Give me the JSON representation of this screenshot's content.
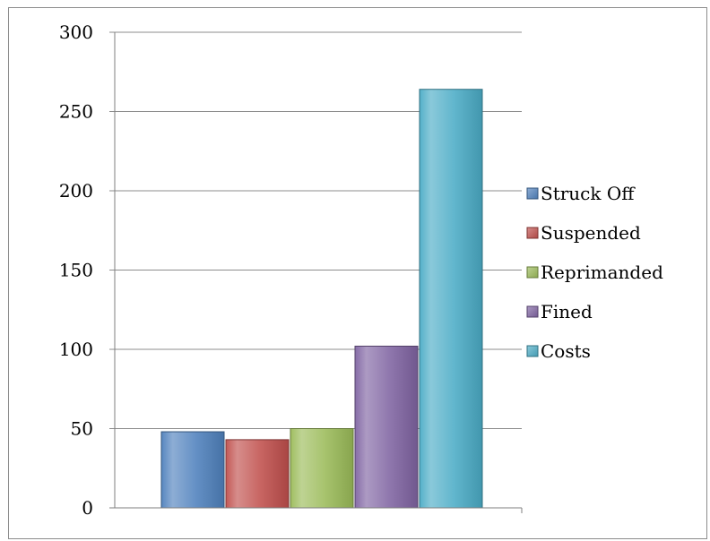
{
  "chart_data": {
    "type": "bar",
    "title": "",
    "xlabel": "",
    "ylabel": "",
    "ylim": [
      0,
      300
    ],
    "yticks": [
      0,
      50,
      100,
      150,
      200,
      250,
      300
    ],
    "grid": true,
    "legend_position": "right",
    "series": [
      {
        "name": "Struck Off",
        "value": 48,
        "color": "#4f81bd"
      },
      {
        "name": "Suspended",
        "value": 43,
        "color": "#c0504d"
      },
      {
        "name": "Reprimanded",
        "value": 50,
        "color": "#9bbb59"
      },
      {
        "name": "Fined",
        "value": 102,
        "color": "#8064a2"
      },
      {
        "name": "Costs",
        "value": 264,
        "color": "#4bacc6"
      }
    ]
  }
}
